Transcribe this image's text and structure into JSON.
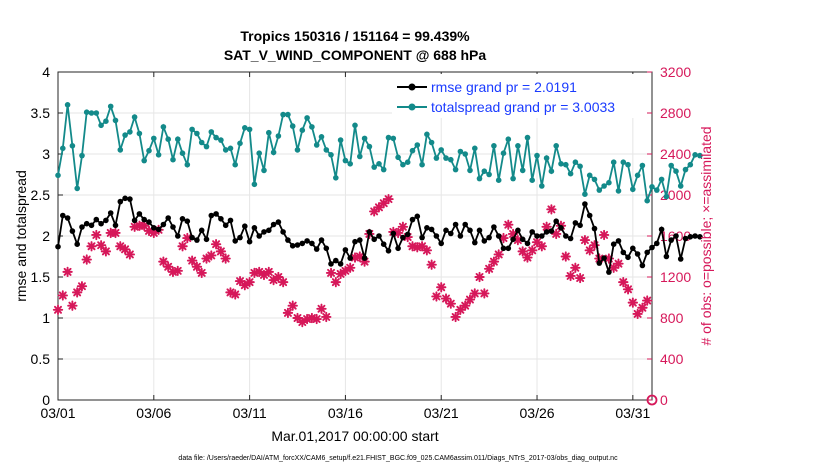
{
  "chart_data": {
    "type": "line",
    "title_line1": "Tropics 150316 / 151164 = 99.439%",
    "title_line2": "SAT_V_WIND_COMPONENT @ 688 hPa",
    "xlabel": "Mar.01,2017 00:00:00 start",
    "ylabel_left": "rmse and totalspread",
    "ylabel_right": "# of obs: o=possible; ×=assimilated",
    "footer": "data file: /Users/raeder/DAI/ATM_forcXX/CAM6_setup/f.e21.FHIST_BGC.f09_025.CAM6assim.011/Diags_NTrS_2017-03/obs_diag_output.nc",
    "xlim": [
      1,
      32
    ],
    "ylim_left": [
      0,
      4
    ],
    "ylim_right": [
      0,
      3200
    ],
    "x_ticks": [
      1,
      6,
      11,
      16,
      21,
      26,
      31
    ],
    "x_tick_labels": [
      "03/01",
      "03/06",
      "03/11",
      "03/16",
      "03/21",
      "03/26",
      "03/31"
    ],
    "y_ticks_left": [
      0,
      0.5,
      1,
      1.5,
      2,
      2.5,
      3,
      3.5,
      4
    ],
    "y_tick_labels_left": [
      "0",
      "0.5",
      "1",
      "1.5",
      "2",
      "2.5",
      "3",
      "3.5",
      "4"
    ],
    "y_ticks_right": [
      0,
      400,
      800,
      1200,
      1600,
      2000,
      2400,
      2800,
      3200
    ],
    "y_tick_labels_right": [
      "0",
      "400",
      "800",
      "1200",
      "1600",
      "2000",
      "2400",
      "2800",
      "3200"
    ],
    "grid": true,
    "legend_position": "top-right",
    "legend": [
      "rmse grand pr = 2.0191",
      "totalspread grand pr = 3.0033"
    ],
    "colors": {
      "rmse": "#000000",
      "totalspread": "#138a8a",
      "obs": "#d6185a",
      "legend_text": "#1a3bff",
      "grid": "#e6e6e6",
      "axis": "#262626"
    },
    "series": [
      {
        "name": "rmse",
        "axis": "left",
        "x_start": 1,
        "dx": 0.25,
        "values": [
          1.87,
          2.25,
          2.22,
          2.06,
          1.9,
          2.11,
          2.15,
          2.13,
          2.2,
          2.15,
          2.19,
          2.28,
          2.13,
          2.42,
          2.46,
          2.45,
          2.19,
          2.27,
          2.2,
          2.17,
          2.1,
          2.08,
          2.14,
          2.22,
          2.11,
          2.0,
          2.21,
          2.18,
          1.98,
          1.95,
          2.07,
          1.96,
          2.25,
          2.27,
          2.21,
          2.13,
          2.19,
          1.94,
          1.98,
          2.12,
          1.93,
          2.1,
          2.0,
          2.05,
          2.07,
          2.14,
          2.17,
          2.05,
          1.95,
          1.88,
          1.89,
          1.91,
          1.94,
          1.91,
          1.84,
          1.95,
          1.85,
          1.66,
          1.7,
          1.66,
          1.83,
          1.73,
          1.93,
          1.95,
          1.73,
          2.05,
          1.96,
          2.0,
          1.9,
          1.82,
          2.03,
          1.85,
          1.98,
          2.02,
          2.2,
          2.24,
          1.98,
          2.1,
          2.08,
          2.0,
          1.91,
          2.07,
          2.03,
          2.14,
          2.0,
          2.14,
          2.07,
          1.92,
          2.07,
          1.94,
          1.98,
          2.11,
          2.0,
          1.85,
          1.85,
          1.96,
          2.07,
          1.96,
          1.91,
          2.05,
          2.0,
          2.0,
          2.05,
          2.06,
          2.18,
          2.1,
          2.0,
          1.97,
          2.16,
          2.13,
          2.39,
          2.25,
          2.09,
          1.67,
          1.73,
          1.56,
          1.9,
          1.94,
          1.8,
          1.74,
          1.85,
          1.78,
          1.64,
          1.8,
          1.86,
          1.91,
          2.08,
          1.75,
          1.95,
          2.0,
          1.72,
          1.97,
          1.99,
          2.0,
          1.99
        ]
      },
      {
        "name": "totalspread",
        "axis": "left",
        "x_start": 1,
        "dx": 0.25,
        "values": [
          2.74,
          3.07,
          3.6,
          3.1,
          2.58,
          2.98,
          3.51,
          3.5,
          3.5,
          3.35,
          3.4,
          3.58,
          3.41,
          3.05,
          3.23,
          3.27,
          3.45,
          3.25,
          2.92,
          3.04,
          3.19,
          2.99,
          3.33,
          3.18,
          2.93,
          3.18,
          3.01,
          2.87,
          3.3,
          3.25,
          3.14,
          3.09,
          3.27,
          3.2,
          3.17,
          3.05,
          3.07,
          2.87,
          3.13,
          3.32,
          3.3,
          2.63,
          3.01,
          2.8,
          3.26,
          3.02,
          3.22,
          3.48,
          3.48,
          3.34,
          3.05,
          3.29,
          3.44,
          3.33,
          3.11,
          3.21,
          3.05,
          2.99,
          2.71,
          3.17,
          2.92,
          2.88,
          3.35,
          2.97,
          3.19,
          3.09,
          2.84,
          2.88,
          2.81,
          3.2,
          3.19,
          2.96,
          2.87,
          2.9,
          3.04,
          3.11,
          2.87,
          3.24,
          3.14,
          2.95,
          3.05,
          2.95,
          2.93,
          2.81,
          3.03,
          3.0,
          2.8,
          3.07,
          2.7,
          2.79,
          2.75,
          3.1,
          2.68,
          3.01,
          3.18,
          2.7,
          3.1,
          2.8,
          3.2,
          2.68,
          2.98,
          2.61,
          2.95,
          2.79,
          3.1,
          2.88,
          2.87,
          2.76,
          2.9,
          2.85,
          2.51,
          2.74,
          2.69,
          2.56,
          2.61,
          2.65,
          2.9,
          2.55,
          2.9,
          2.87,
          2.57,
          2.74,
          2.86,
          2.43,
          2.6,
          2.56,
          2.69,
          2.48,
          2.86,
          2.79,
          2.61,
          2.81,
          2.87,
          2.99,
          2.98
        ]
      },
      {
        "name": "obs assimilated",
        "axis": "right",
        "style": "asterisk",
        "points": [
          [
            1.0,
            880
          ],
          [
            1.25,
            1020
          ],
          [
            1.5,
            1250
          ],
          [
            1.75,
            920
          ],
          [
            2.0,
            1050
          ],
          [
            2.25,
            1110
          ],
          [
            2.5,
            1370
          ],
          [
            2.75,
            1500
          ],
          [
            3.0,
            1610
          ],
          [
            3.25,
            1510
          ],
          [
            3.5,
            1450
          ],
          [
            3.75,
            1630
          ],
          [
            4.0,
            1630
          ],
          [
            4.25,
            1500
          ],
          [
            4.5,
            1470
          ],
          [
            4.75,
            1420
          ],
          [
            5.0,
            1690
          ],
          [
            5.25,
            1700
          ],
          [
            5.5,
            1700
          ],
          [
            5.75,
            1650
          ],
          [
            6.0,
            1630
          ],
          [
            6.25,
            1660
          ],
          [
            6.5,
            1350
          ],
          [
            6.75,
            1300
          ],
          [
            7.0,
            1250
          ],
          [
            7.25,
            1260
          ],
          [
            7.5,
            1500
          ],
          [
            7.75,
            1580
          ],
          [
            8.0,
            1360
          ],
          [
            8.25,
            1300
          ],
          [
            8.5,
            1240
          ],
          [
            8.75,
            1380
          ],
          [
            9.0,
            1410
          ],
          [
            9.25,
            1520
          ],
          [
            9.5,
            1450
          ],
          [
            9.75,
            1380
          ],
          [
            10.0,
            1050
          ],
          [
            10.25,
            1030
          ],
          [
            10.5,
            1160
          ],
          [
            10.75,
            1120
          ],
          [
            11.0,
            1150
          ],
          [
            11.25,
            1240
          ],
          [
            11.5,
            1250
          ],
          [
            11.75,
            1220
          ],
          [
            12.0,
            1250
          ],
          [
            12.25,
            1170
          ],
          [
            12.5,
            1200
          ],
          [
            12.75,
            1150
          ],
          [
            13.0,
            850
          ],
          [
            13.25,
            920
          ],
          [
            13.5,
            800
          ],
          [
            13.75,
            760
          ],
          [
            14.0,
            790
          ],
          [
            14.25,
            800
          ],
          [
            14.5,
            790
          ],
          [
            14.75,
            890
          ],
          [
            15.0,
            810
          ],
          [
            15.25,
            1240
          ],
          [
            15.5,
            1150
          ],
          [
            15.75,
            1230
          ],
          [
            16.0,
            1260
          ],
          [
            16.25,
            1290
          ],
          [
            16.5,
            1390
          ],
          [
            16.75,
            1400
          ],
          [
            17.0,
            1350
          ],
          [
            17.25,
            1620
          ],
          [
            17.5,
            1840
          ],
          [
            17.75,
            1880
          ],
          [
            18.0,
            1920
          ],
          [
            18.25,
            1960
          ],
          [
            18.5,
            1640
          ],
          [
            18.75,
            1630
          ],
          [
            19.0,
            1690
          ],
          [
            19.25,
            1590
          ],
          [
            19.5,
            1500
          ],
          [
            19.75,
            1490
          ],
          [
            20.0,
            1500
          ],
          [
            20.25,
            1460
          ],
          [
            20.5,
            1320
          ],
          [
            20.75,
            1010
          ],
          [
            21.0,
            1100
          ],
          [
            21.25,
            990
          ],
          [
            21.5,
            940
          ],
          [
            21.75,
            810
          ],
          [
            22.0,
            880
          ],
          [
            22.25,
            920
          ],
          [
            22.5,
            980
          ],
          [
            22.75,
            1040
          ],
          [
            23.0,
            1200
          ],
          [
            23.25,
            1040
          ],
          [
            23.5,
            1280
          ],
          [
            23.75,
            1350
          ],
          [
            24.0,
            1420
          ],
          [
            24.25,
            1580
          ],
          [
            24.5,
            1710
          ],
          [
            24.75,
            1620
          ],
          [
            25.0,
            1560
          ],
          [
            25.25,
            1450
          ],
          [
            25.5,
            1390
          ],
          [
            25.75,
            1460
          ],
          [
            26.0,
            1540
          ],
          [
            26.25,
            1500
          ],
          [
            26.5,
            1690
          ],
          [
            26.75,
            1860
          ],
          [
            27.0,
            1620
          ],
          [
            27.25,
            1700
          ],
          [
            27.5,
            1400
          ],
          [
            27.75,
            1210
          ],
          [
            28.0,
            1290
          ],
          [
            28.25,
            1190
          ],
          [
            28.5,
            1560
          ],
          [
            28.75,
            1460
          ],
          [
            29.0,
            1510
          ],
          [
            29.25,
            1380
          ],
          [
            29.5,
            1610
          ],
          [
            29.75,
            1380
          ],
          [
            30.0,
            1290
          ],
          [
            30.25,
            1330
          ],
          [
            30.5,
            1150
          ],
          [
            30.75,
            1080
          ],
          [
            31.0,
            950
          ],
          [
            31.25,
            840
          ],
          [
            31.5,
            900
          ],
          [
            31.75,
            970
          ]
        ]
      },
      {
        "name": "obs possible",
        "axis": "right",
        "style": "circle",
        "points": [
          [
            32.0,
            0
          ]
        ]
      }
    ]
  }
}
